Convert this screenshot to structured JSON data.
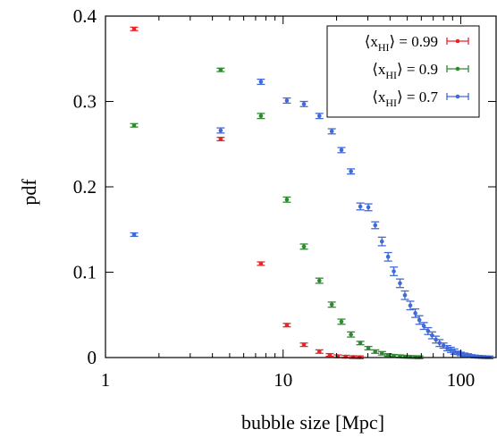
{
  "chart_data": {
    "type": "scatter",
    "title": "",
    "xlabel": "bubble size [Mpc]",
    "ylabel": "pdf",
    "xscale": "log",
    "xlim": [
      1,
      160
    ],
    "ylim": [
      0,
      0.4
    ],
    "xticks": [
      1,
      10,
      100
    ],
    "xtick_labels": [
      "1",
      "10",
      "100"
    ],
    "yticks": [
      0,
      0.1,
      0.2,
      0.3,
      0.4
    ],
    "ytick_labels": [
      "0",
      "0.1",
      "0.2",
      "0.3",
      "0.4"
    ],
    "grid": false,
    "legend": {
      "position": "top-right",
      "entries": [
        {
          "prefix": "⟨x",
          "sub": "HI",
          "suffix": "⟩ = 0.99"
        },
        {
          "prefix": "⟨x",
          "sub": "HI",
          "suffix": "⟩ = 0.9"
        },
        {
          "prefix": "⟨x",
          "sub": "HI",
          "suffix": "⟩ = 0.7"
        }
      ]
    },
    "series": [
      {
        "color": "#e8262a",
        "x": [
          1.45,
          4.45,
          7.5,
          10.5,
          13.1,
          16.0,
          18.3,
          20.3,
          22.5,
          24.8,
          27.0
        ],
        "y": [
          0.385,
          0.256,
          0.11,
          0.038,
          0.015,
          0.007,
          0.003,
          0.0015,
          0.001,
          0.0005,
          0.0003
        ],
        "err": [
          0.002,
          0.002,
          0.002,
          0.002,
          0.002,
          0.002,
          0.0015,
          0.001,
          0.001,
          0.001,
          0.001
        ]
      },
      {
        "color": "#2e8a2e",
        "x": [
          1.45,
          4.45,
          7.5,
          10.5,
          13.1,
          16.0,
          18.8,
          21.3,
          24.1,
          27.2,
          30.2,
          33.0,
          36.0,
          39.0,
          42.0,
          45.5,
          48.5,
          52.0,
          55.5,
          58.5
        ],
        "y": [
          0.272,
          0.337,
          0.283,
          0.185,
          0.13,
          0.09,
          0.062,
          0.042,
          0.027,
          0.017,
          0.011,
          0.007,
          0.005,
          0.003,
          0.002,
          0.0015,
          0.001,
          0.0007,
          0.0005,
          0.0003
        ],
        "err": [
          0.002,
          0.002,
          0.003,
          0.003,
          0.003,
          0.003,
          0.003,
          0.003,
          0.003,
          0.002,
          0.002,
          0.002,
          0.002,
          0.0015,
          0.0015,
          0.001,
          0.001,
          0.001,
          0.001,
          0.001
        ]
      },
      {
        "color": "#4169d8",
        "x": [
          1.45,
          4.45,
          7.5,
          10.5,
          13.1,
          16.0,
          18.8,
          21.3,
          24.1,
          27.2,
          30.2,
          33.0,
          36.0,
          39.0,
          42.0,
          45.5,
          48.5,
          52.0,
          55.5,
          58.5,
          62.0,
          65.5,
          69.0,
          72.5,
          76.0,
          80.0,
          84.0,
          88.0,
          92.0,
          96.0,
          100.0,
          105.0,
          110.0,
          115.0,
          120.0,
          126.0,
          132.0,
          138.0,
          145.0
        ],
        "y": [
          0.144,
          0.266,
          0.323,
          0.301,
          0.297,
          0.283,
          0.265,
          0.243,
          0.218,
          0.177,
          0.176,
          0.155,
          0.136,
          0.118,
          0.101,
          0.087,
          0.073,
          0.061,
          0.052,
          0.044,
          0.037,
          0.031,
          0.026,
          0.021,
          0.017,
          0.014,
          0.011,
          0.009,
          0.007,
          0.0055,
          0.0042,
          0.0032,
          0.0024,
          0.0018,
          0.0013,
          0.0009,
          0.0006,
          0.0004,
          0.0002
        ],
        "err": [
          0.002,
          0.003,
          0.003,
          0.003,
          0.003,
          0.003,
          0.003,
          0.003,
          0.003,
          0.004,
          0.004,
          0.004,
          0.005,
          0.005,
          0.005,
          0.005,
          0.005,
          0.005,
          0.005,
          0.005,
          0.004,
          0.004,
          0.004,
          0.004,
          0.004,
          0.003,
          0.003,
          0.003,
          0.003,
          0.002,
          0.002,
          0.002,
          0.002,
          0.0015,
          0.0015,
          0.001,
          0.001,
          0.001,
          0.001
        ]
      }
    ]
  }
}
